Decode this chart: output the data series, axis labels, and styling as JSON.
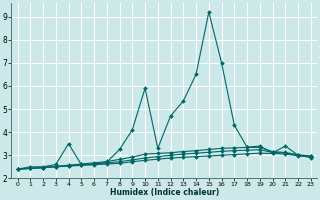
{
  "xlabel": "Humidex (Indice chaleur)",
  "bg_color": "#cce8e8",
  "grid_color": "#ffffff",
  "line_color": "#006666",
  "xlim": [
    -0.5,
    23.5
  ],
  "ylim": [
    2.0,
    9.6
  ],
  "yticks": [
    2,
    3,
    4,
    5,
    6,
    7,
    8,
    9
  ],
  "xticks": [
    0,
    1,
    2,
    3,
    4,
    5,
    6,
    7,
    8,
    9,
    10,
    11,
    12,
    13,
    14,
    15,
    16,
    17,
    18,
    19,
    20,
    21,
    22,
    23
  ],
  "line1_x": [
    0,
    1,
    2,
    3,
    4,
    5,
    6,
    7,
    8,
    9,
    10,
    11,
    12,
    13,
    14,
    15,
    16,
    17,
    18,
    19,
    20,
    21,
    22,
    23
  ],
  "line1_y": [
    2.4,
    2.5,
    2.5,
    2.6,
    3.5,
    2.6,
    2.6,
    2.7,
    3.25,
    4.1,
    5.9,
    3.3,
    4.7,
    5.35,
    6.5,
    9.2,
    7.0,
    4.3,
    3.35,
    3.4,
    3.1,
    3.4,
    3.0,
    2.9
  ],
  "line2_x": [
    0,
    1,
    2,
    3,
    4,
    5,
    6,
    7,
    8,
    9,
    10,
    11,
    12,
    13,
    14,
    15,
    16,
    17,
    18,
    19,
    20,
    21,
    22,
    23
  ],
  "line2_y": [
    2.4,
    2.43,
    2.46,
    2.5,
    2.53,
    2.56,
    2.59,
    2.62,
    2.65,
    2.72,
    2.78,
    2.83,
    2.88,
    2.91,
    2.94,
    2.97,
    3.0,
    3.03,
    3.06,
    3.09,
    3.08,
    3.05,
    2.98,
    2.93
  ],
  "line3_x": [
    0,
    1,
    2,
    3,
    4,
    5,
    6,
    7,
    8,
    9,
    10,
    11,
    12,
    13,
    14,
    15,
    16,
    17,
    18,
    19,
    20,
    21,
    22,
    23
  ],
  "line3_y": [
    2.4,
    2.43,
    2.47,
    2.51,
    2.55,
    2.59,
    2.63,
    2.67,
    2.72,
    2.8,
    2.88,
    2.94,
    3.0,
    3.05,
    3.09,
    3.13,
    3.17,
    3.2,
    3.22,
    3.24,
    3.12,
    3.1,
    3.0,
    2.95
  ],
  "line4_x": [
    0,
    1,
    2,
    3,
    4,
    5,
    6,
    7,
    8,
    9,
    10,
    11,
    12,
    13,
    14,
    15,
    16,
    17,
    18,
    19,
    20,
    21,
    22,
    23
  ],
  "line4_y": [
    2.4,
    2.43,
    2.47,
    2.52,
    2.57,
    2.62,
    2.67,
    2.73,
    2.82,
    2.92,
    3.05,
    3.08,
    3.11,
    3.16,
    3.2,
    3.25,
    3.3,
    3.32,
    3.34,
    3.34,
    3.16,
    3.12,
    3.02,
    2.97
  ]
}
